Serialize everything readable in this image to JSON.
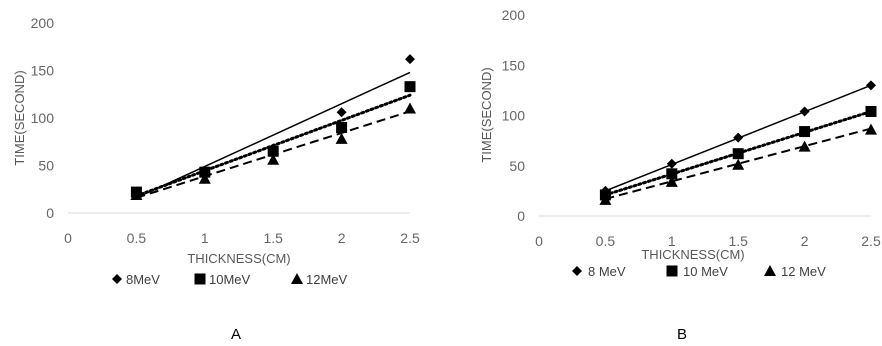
{
  "chart_data": [
    {
      "type": "scatter",
      "panel_label": "A",
      "xlabel": "THICKNESS(CM)",
      "ylabel": "TIME(SECOND)",
      "xlim": [
        0,
        2.5
      ],
      "ylim": [
        0,
        200
      ],
      "x_ticks": [
        "0",
        "0.5",
        "1",
        "1.5",
        "2",
        "2.5"
      ],
      "y_ticks": [
        "0",
        "50",
        "100",
        "150",
        "200"
      ],
      "grid": false,
      "legend_position": "bottom",
      "series": [
        {
          "name": "8MeV",
          "marker": "diamond",
          "trendline": "solid",
          "x": [
            0.5,
            1,
            1.5,
            2,
            2.5
          ],
          "y": [
            19,
            44,
            68,
            106,
            162
          ],
          "trend": [
            [
              0.5,
              16
            ],
            [
              2.5,
              148
            ]
          ]
        },
        {
          "name": "10MeV",
          "marker": "square",
          "trendline": "dotted",
          "x": [
            0.5,
            1,
            1.5,
            2,
            2.5
          ],
          "y": [
            22,
            43,
            65,
            90,
            133
          ],
          "trend": [
            [
              0.5,
              18
            ],
            [
              2.5,
              124
            ]
          ]
        },
        {
          "name": "12MeV",
          "marker": "triangle",
          "trendline": "dashed",
          "x": [
            0.5,
            1,
            1.5,
            2,
            2.5
          ],
          "y": [
            19,
            36,
            56,
            78,
            110
          ],
          "trend": [
            [
              0.5,
              16
            ],
            [
              2.5,
              107
            ]
          ]
        }
      ]
    },
    {
      "type": "scatter",
      "panel_label": "B",
      "xlabel": "THICKNESS(CM)",
      "ylabel": "TIME(SECOND)",
      "xlim": [
        0,
        2.5
      ],
      "ylim": [
        0,
        200
      ],
      "x_ticks": [
        "0",
        "0.5",
        "1",
        "1.5",
        "2",
        "2.5"
      ],
      "y_ticks": [
        "0",
        "50",
        "100",
        "150",
        "200"
      ],
      "grid": false,
      "legend_position": "bottom",
      "series": [
        {
          "name": "8 MeV",
          "marker": "diamond",
          "trendline": "solid",
          "x": [
            0.5,
            1,
            1.5,
            2,
            2.5
          ],
          "y": [
            25,
            52,
            78,
            104,
            130
          ],
          "trend": [
            [
              0.5,
              25
            ],
            [
              2.5,
              130
            ]
          ]
        },
        {
          "name": "10 MeV",
          "marker": "square",
          "trendline": "dotted",
          "x": [
            0.5,
            1,
            1.5,
            2,
            2.5
          ],
          "y": [
            21,
            42,
            62,
            84,
            104
          ],
          "trend": [
            [
              0.5,
              21
            ],
            [
              2.5,
              104
            ]
          ]
        },
        {
          "name": "12 MeV",
          "marker": "triangle",
          "trendline": "dashed",
          "x": [
            0.5,
            1,
            1.5,
            2,
            2.5
          ],
          "y": [
            16,
            34,
            51,
            69,
            86
          ],
          "trend": [
            [
              0.5,
              17
            ],
            [
              2.5,
              87
            ]
          ]
        }
      ]
    }
  ]
}
